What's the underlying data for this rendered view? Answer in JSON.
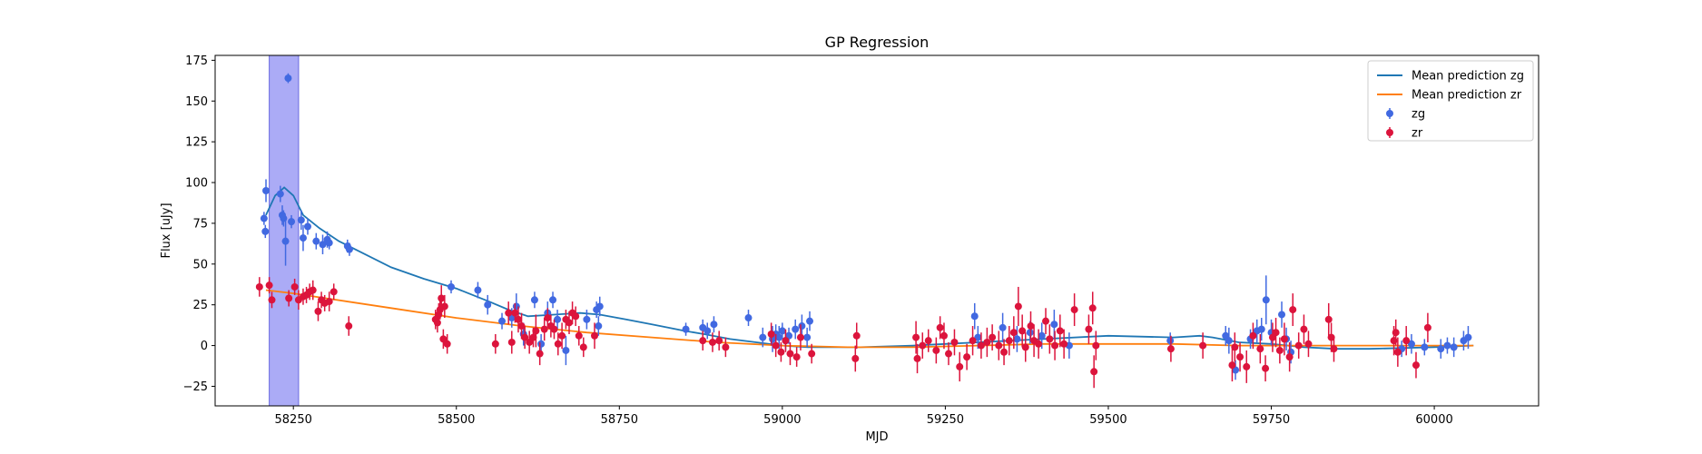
{
  "chart_data": {
    "type": "scatter",
    "title": "GP Regression",
    "xlabel": "MJD",
    "ylabel": "Flux [uJy]",
    "xlim": [
      58130,
      60160
    ],
    "ylim": [
      -37,
      178
    ],
    "xticks": [
      58250,
      58500,
      58750,
      59000,
      59250,
      59500,
      59750,
      60000
    ],
    "yticks": [
      -25,
      0,
      25,
      50,
      75,
      100,
      125,
      150,
      175
    ],
    "legend_position": "upper right",
    "highlight_band": {
      "x0": 58213,
      "x1": 58258,
      "color": "#a6a6f5"
    },
    "series": [
      {
        "name": "Mean prediction zg",
        "kind": "line",
        "color": "#1f77b4",
        "x": [
          58208,
          58222,
          58236,
          58250,
          58265,
          58290,
          58320,
          58350,
          58400,
          58450,
          58500,
          58550,
          58580,
          58610,
          58650,
          58690,
          58720,
          58760,
          58800,
          58850,
          58880,
          58920,
          58960,
          59000,
          59040,
          59080,
          59120,
          59200,
          59250,
          59300,
          59400,
          59500,
          59600,
          59640,
          59660,
          59700,
          59750,
          59800,
          59850,
          59900,
          60000,
          60060
        ],
        "y": [
          80,
          92,
          97,
          92,
          80,
          72,
          64,
          58,
          48,
          41,
          35,
          27,
          22,
          18,
          19,
          20,
          19,
          16,
          13,
          9,
          7,
          4,
          2,
          0,
          -1,
          -1,
          -1,
          0,
          1,
          2,
          4,
          6,
          5,
          6,
          5,
          2,
          1,
          -1,
          -2,
          -2,
          -1,
          0
        ]
      },
      {
        "name": "Mean prediction zr",
        "kind": "line",
        "color": "#ff7f0e",
        "x": [
          58208,
          58250,
          58300,
          58400,
          58500,
          58600,
          58700,
          58800,
          58900,
          59000,
          59100,
          59200,
          59300,
          59400,
          59500,
          59600,
          59700,
          59800,
          59900,
          60000,
          60060
        ],
        "y": [
          34,
          32,
          29,
          23,
          17,
          12,
          8,
          5,
          2,
          0,
          -1,
          -1,
          0,
          1,
          1,
          1,
          0,
          0,
          0,
          0,
          0
        ]
      },
      {
        "name": "zg",
        "kind": "errorbar",
        "color": "#4169e1",
        "x": [
          58205,
          58207,
          58208,
          58230,
          58233,
          58235,
          58238,
          58242,
          58247,
          58262,
          58265,
          58272,
          58285,
          58295,
          58302,
          58305,
          58333,
          58336,
          58492,
          58533,
          58548,
          58570,
          58585,
          58592,
          58603,
          58620,
          58630,
          58640,
          58648,
          58655,
          58668,
          58700,
          58715,
          58718,
          58720,
          58852,
          58878,
          58885,
          58895,
          58948,
          58970,
          58985,
          58990,
          58995,
          59000,
          59005,
          59010,
          59020,
          59030,
          59038,
          59042,
          59295,
          59300,
          59338,
          59360,
          59380,
          59398,
          59417,
          59440,
          59595,
          59680,
          59685,
          59695,
          59718,
          59728,
          59735,
          59742,
          59750,
          59766,
          59773,
          59780,
          59950,
          59965,
          59985,
          60010,
          60020,
          60030,
          60045,
          60052
        ],
        "y": [
          78,
          70,
          95,
          93,
          80,
          78,
          64,
          164,
          76,
          77,
          66,
          73,
          64,
          62,
          65,
          63,
          61,
          59,
          36,
          34,
          25,
          15,
          17,
          24,
          7,
          28,
          1,
          20,
          28,
          16,
          -3,
          16,
          22,
          12,
          24,
          10,
          11,
          9,
          13,
          17,
          5,
          4,
          7,
          5,
          9,
          3,
          6,
          10,
          12,
          5,
          15,
          18,
          5,
          11,
          4,
          8,
          6,
          13,
          0,
          3,
          6,
          3,
          -15,
          4,
          9,
          10,
          28,
          8,
          19,
          4,
          -4,
          -2,
          1,
          -1,
          -2,
          0,
          -1,
          3,
          5
        ],
        "err": [
          4,
          4,
          7,
          5,
          6,
          5,
          15,
          3,
          4,
          6,
          8,
          5,
          5,
          6,
          5,
          4,
          4,
          4,
          4,
          5,
          6,
          5,
          6,
          8,
          7,
          5,
          6,
          7,
          5,
          6,
          9,
          6,
          5,
          6,
          6,
          4,
          5,
          5,
          5,
          5,
          6,
          8,
          6,
          7,
          5,
          6,
          5,
          6,
          7,
          6,
          6,
          8,
          7,
          9,
          8,
          7,
          8,
          9,
          8,
          5,
          6,
          8,
          6,
          6,
          7,
          7,
          15,
          8,
          8,
          7,
          7,
          5,
          6,
          5,
          6,
          5,
          6,
          6,
          7
        ]
      },
      {
        "name": "zr",
        "kind": "errorbar",
        "color": "#dc143c",
        "x": [
          58198,
          58213,
          58217,
          58243,
          58252,
          58258,
          58265,
          58270,
          58275,
          58280,
          58288,
          58293,
          58298,
          58305,
          58312,
          58335,
          58468,
          58471,
          58473,
          58475,
          58477,
          58480,
          58482,
          58486,
          58560,
          58580,
          58585,
          58590,
          58595,
          58600,
          58605,
          58612,
          58618,
          58622,
          58628,
          58635,
          58640,
          58645,
          58650,
          58656,
          58662,
          58668,
          58673,
          58678,
          58683,
          58688,
          58695,
          58712,
          58878,
          58893,
          58903,
          58913,
          58983,
          58990,
          58998,
          59005,
          59012,
          59022,
          59028,
          59045,
          59112,
          59114,
          59205,
          59207,
          59215,
          59224,
          59236,
          59242,
          59248,
          59255,
          59264,
          59272,
          59283,
          59292,
          59305,
          59314,
          59322,
          59332,
          59340,
          59348,
          59355,
          59362,
          59368,
          59373,
          59381,
          59386,
          59393,
          59404,
          59410,
          59418,
          59426,
          59432,
          59448,
          59470,
          59476,
          59478,
          59481,
          59596,
          59645,
          59690,
          59694,
          59702,
          59712,
          59722,
          59733,
          59741,
          59752,
          59757,
          59763,
          59770,
          59778,
          59783,
          59792,
          59800,
          59807,
          59838,
          59842,
          59846,
          59938,
          59941,
          59944,
          59957,
          59972,
          59990
        ],
        "y": [
          36,
          37,
          28,
          29,
          36,
          28,
          30,
          31,
          33,
          34,
          21,
          28,
          26,
          27,
          33,
          12,
          16,
          14,
          19,
          22,
          29,
          4,
          24,
          1,
          1,
          20,
          2,
          20,
          16,
          12,
          5,
          2,
          5,
          9,
          -5,
          10,
          17,
          12,
          10,
          1,
          6,
          16,
          14,
          20,
          18,
          6,
          -1,
          6,
          3,
          2,
          3,
          -1,
          7,
          0,
          -4,
          3,
          -5,
          -7,
          5,
          -5,
          -8,
          6,
          5,
          -8,
          0,
          3,
          -3,
          11,
          6,
          -5,
          2,
          -13,
          -7,
          3,
          0,
          2,
          5,
          0,
          -4,
          3,
          8,
          24,
          9,
          -1,
          12,
          3,
          1,
          15,
          4,
          0,
          9,
          1,
          22,
          10,
          23,
          -16,
          0,
          -2,
          0,
          -12,
          -1,
          -7,
          -13,
          6,
          -2,
          -14,
          5,
          8,
          -3,
          4,
          -7,
          22,
          0,
          10,
          1,
          16,
          5,
          -2,
          3,
          8,
          -4,
          3,
          -12,
          11
        ],
        "err": [
          6,
          5,
          5,
          5,
          5,
          6,
          5,
          5,
          5,
          6,
          6,
          5,
          5,
          6,
          5,
          6,
          6,
          6,
          7,
          6,
          8,
          6,
          7,
          6,
          6,
          7,
          7,
          6,
          8,
          8,
          7,
          7,
          6,
          10,
          7,
          7,
          6,
          7,
          6,
          7,
          8,
          6,
          7,
          7,
          6,
          6,
          6,
          8,
          6,
          6,
          6,
          6,
          7,
          7,
          6,
          7,
          7,
          6,
          8,
          6,
          8,
          8,
          10,
          9,
          8,
          7,
          8,
          7,
          8,
          7,
          8,
          9,
          8,
          9,
          8,
          9,
          8,
          9,
          8,
          9,
          10,
          12,
          10,
          9,
          9,
          10,
          9,
          8,
          9,
          9,
          10,
          9,
          10,
          9,
          10,
          10,
          9,
          8,
          8,
          10,
          9,
          9,
          10,
          8,
          9,
          8,
          9,
          9,
          8,
          10,
          9,
          10,
          8,
          9,
          8,
          10,
          9,
          8,
          9,
          8,
          9,
          9,
          8,
          9
        ]
      }
    ]
  }
}
